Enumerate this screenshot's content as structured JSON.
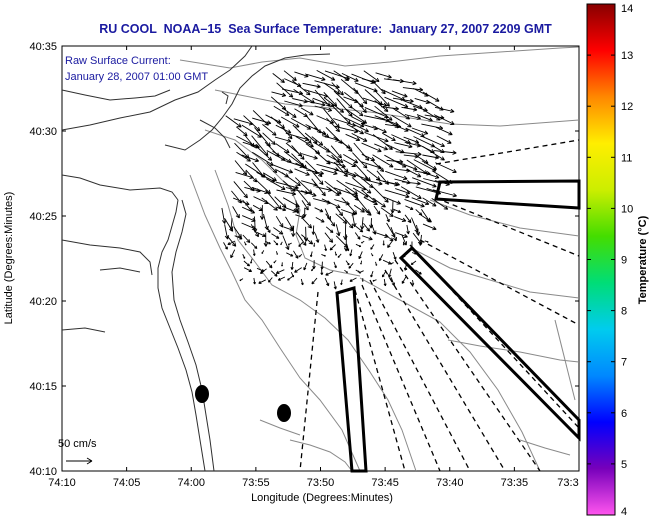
{
  "title": "RU COOL  NOAA–15  Sea Surface Temperature:  January 27, 2007 2209 GMT",
  "current_note": {
    "line1": "Raw Surface Current:",
    "line2": "January 28, 2007 01:00 GMT"
  },
  "scale_label": "50 cm/s",
  "x_axis": {
    "label": "Longitude (Degrees:Minutes)",
    "ticks": [
      "74:10",
      "74:05",
      "74:00",
      "73:55",
      "73:50",
      "73:45",
      "73:40",
      "73:35",
      "73:3"
    ]
  },
  "y_axis": {
    "label": "Latitude (Degrees:Minutes)",
    "ticks": [
      "40:35",
      "40:30",
      "40:25",
      "40:20",
      "40:15",
      "40:10"
    ]
  },
  "colorbar": {
    "label": "Temperature (°C)",
    "ticks": [
      "14",
      "13",
      "12",
      "11",
      "10",
      "9",
      "8",
      "7",
      "6",
      "5",
      "4"
    ],
    "range": [
      4,
      14
    ],
    "colors": [
      "#ff55ee",
      "#7700bb",
      "#0000ff",
      "#0088ff",
      "#00ccee",
      "#00dd77",
      "#44dd00",
      "#ccee00",
      "#ffee00",
      "#ff8800",
      "#ff0000",
      "#880000"
    ]
  }
}
